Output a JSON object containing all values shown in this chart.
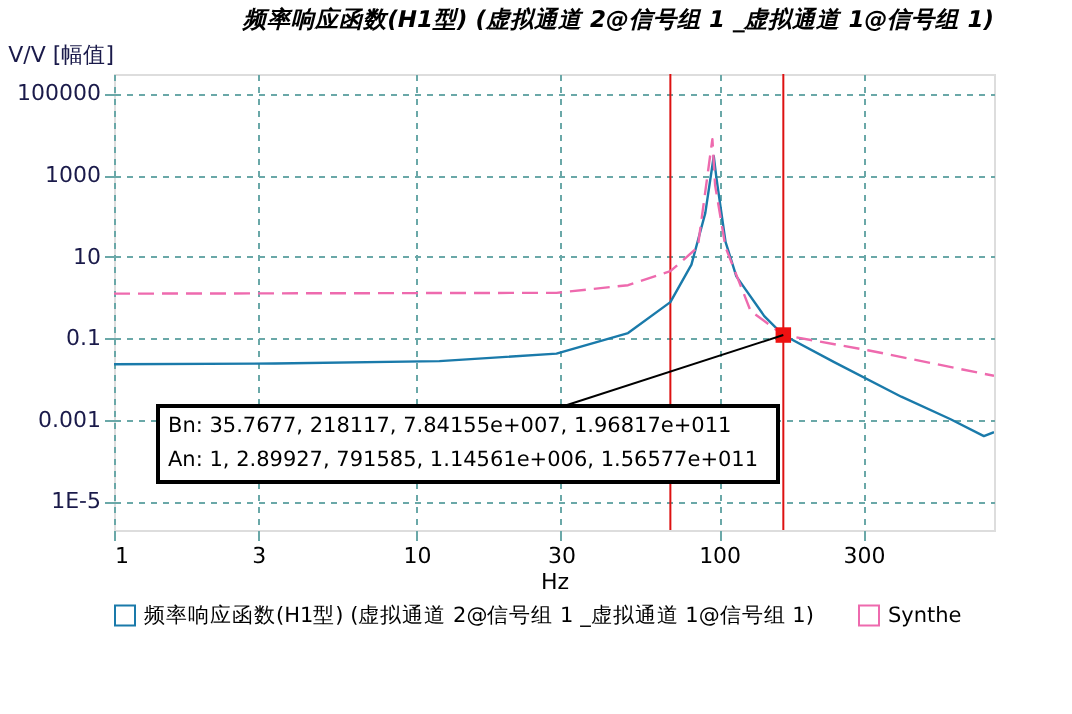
{
  "chart_data": {
    "type": "line",
    "title": "频率响应函数(H1型) (虚拟通道 2@信号组 1 _虚拟通道 1@信号组 1)",
    "xlabel": "Hz",
    "ylabel": "V/V [幅值]",
    "log": "xy",
    "xlim": [
      1,
      810
    ],
    "xticks": [
      1,
      3,
      10,
      30,
      100,
      300
    ],
    "ylim": [
      2e-06,
      300000
    ],
    "yticks": [
      100000,
      1000,
      10,
      0.1,
      0.001,
      {
        "value": 1e-05,
        "label": "1E-5"
      }
    ],
    "grid": true,
    "legend": "bottom",
    "series": [
      {
        "name": "频率响应函数(H1型) (虚拟通道 2@信号组 1 _虚拟通道 1@信号组 1)",
        "color": "#1a7aaa",
        "line_style": "solid",
        "marker": "none",
        "x": [
          1,
          3.4,
          11.9,
          29,
          50,
          69,
          81,
          90,
          96,
          98,
          105,
          114,
          141,
          163,
          240,
          400,
          580,
          750,
          810
        ],
        "values": [
          0.023,
          0.024,
          0.0275,
          0.042,
          0.134,
          0.77,
          6.4,
          117,
          2900,
          830,
          23,
          3.3,
          0.35,
          0.12,
          0.026,
          0.0037,
          0.00105,
          0.0004,
          0.0005
        ]
      },
      {
        "name": "Synthe",
        "color": "#ee6aae",
        "line_style": "dashed",
        "marker": "none",
        "x": [
          1,
          29,
          50,
          69,
          85,
          95,
          97,
          105,
          127,
          163,
          310,
          810
        ],
        "values": [
          1.24,
          1.3,
          2.0,
          4.4,
          17,
          7600,
          560,
          17,
          0.47,
          0.12,
          0.051,
          0.012
        ]
      },
      {
        "type": "scatter",
        "color": "#ee1111",
        "marker": "square",
        "x": [
          163
        ],
        "values": [
          0.12
        ]
      }
    ],
    "ref_lines": [
      {
        "axis": "x",
        "value": 69,
        "color": "#dd1111"
      },
      {
        "axis": "x",
        "value": 163,
        "color": "#dd1111"
      }
    ],
    "annotations": [
      {
        "text": "Bn: 35.7677, 218117, 7.84155e+007, 1.96817e+011",
        "x": 163,
        "y": 0.12
      },
      "An: 1, 2.89927, 791585, 1.14561e+006, 1.56577e+011"
    ]
  }
}
